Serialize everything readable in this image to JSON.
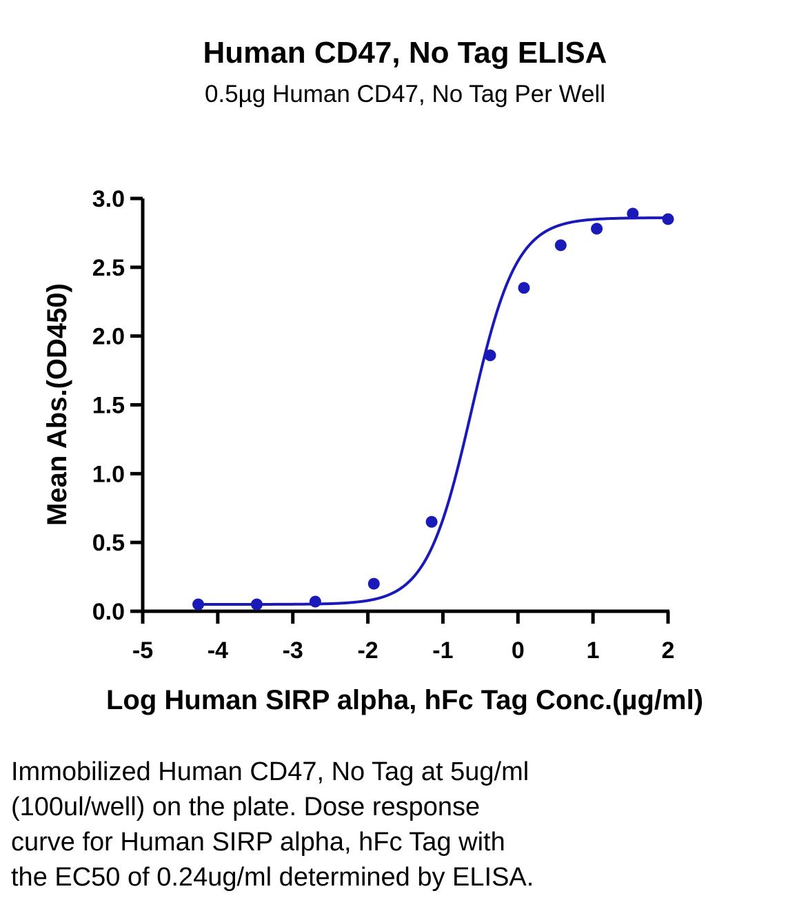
{
  "chart_data": {
    "type": "scatter",
    "title": "Human CD47, No Tag ELISA",
    "subtitle": "0.5µg Human CD47, No Tag Per Well",
    "xlabel": "Log Human SIRP alpha, hFc Tag Conc.(µg/ml)",
    "ylabel": "Mean Abs.(OD450)",
    "xlim": [
      -5,
      2
    ],
    "ylim": [
      0,
      3
    ],
    "x_ticks": [
      "-5",
      "-4",
      "-3",
      "-2",
      "-1",
      "0",
      "1",
      "2"
    ],
    "y_ticks": [
      "0.0",
      "0.5",
      "1.0",
      "1.5",
      "2.0",
      "2.5",
      "3.0"
    ],
    "grid": false,
    "legend": "none",
    "series": [
      {
        "x": [
          -4.26,
          -3.48,
          -2.7,
          -1.92,
          -1.15,
          -0.37,
          0.08,
          0.57,
          1.05,
          1.53,
          2.0
        ],
        "y": [
          0.05,
          0.05,
          0.07,
          0.2,
          0.65,
          1.86,
          2.35,
          2.66,
          2.78,
          2.89,
          2.85
        ],
        "color": "#1a1ab8",
        "fit": "4PL"
      }
    ],
    "fit_curve": {
      "bottom": 0.05,
      "top": 2.86,
      "log_ec50": -0.62,
      "hill_slope": 1.45
    }
  },
  "caption": {
    "lines": [
      "Immobilized Human CD47, No Tag at 5ug/ml",
      "(100ul/well) on the plate. Dose response",
      "curve for Human SIRP alpha, hFc Tag with",
      "the EC50 of 0.24ug/ml determined by ELISA."
    ]
  }
}
